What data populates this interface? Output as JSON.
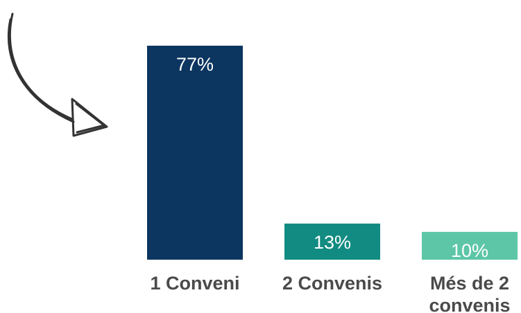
{
  "chart_data": {
    "type": "bar",
    "categories": [
      "1 Conveni",
      "2 Convenis",
      "Més de 2 convenis"
    ],
    "category_label_lines": [
      [
        "1 Conveni"
      ],
      [
        "2 Convenis"
      ],
      [
        "Més de 2",
        "convenis"
      ]
    ],
    "values": [
      77,
      13,
      10
    ],
    "value_labels": [
      "77%",
      "13%",
      "10%"
    ],
    "colors": [
      "#0c3560",
      "#128c82",
      "#5dc6a6"
    ],
    "ylim": [
      0,
      77
    ],
    "grid": false,
    "legend": "none",
    "title": "",
    "xlabel": "",
    "ylabel": ""
  },
  "decoration": {
    "arrow_icon": "hand-drawn-curved-arrow",
    "arrow_color": "#333333"
  }
}
